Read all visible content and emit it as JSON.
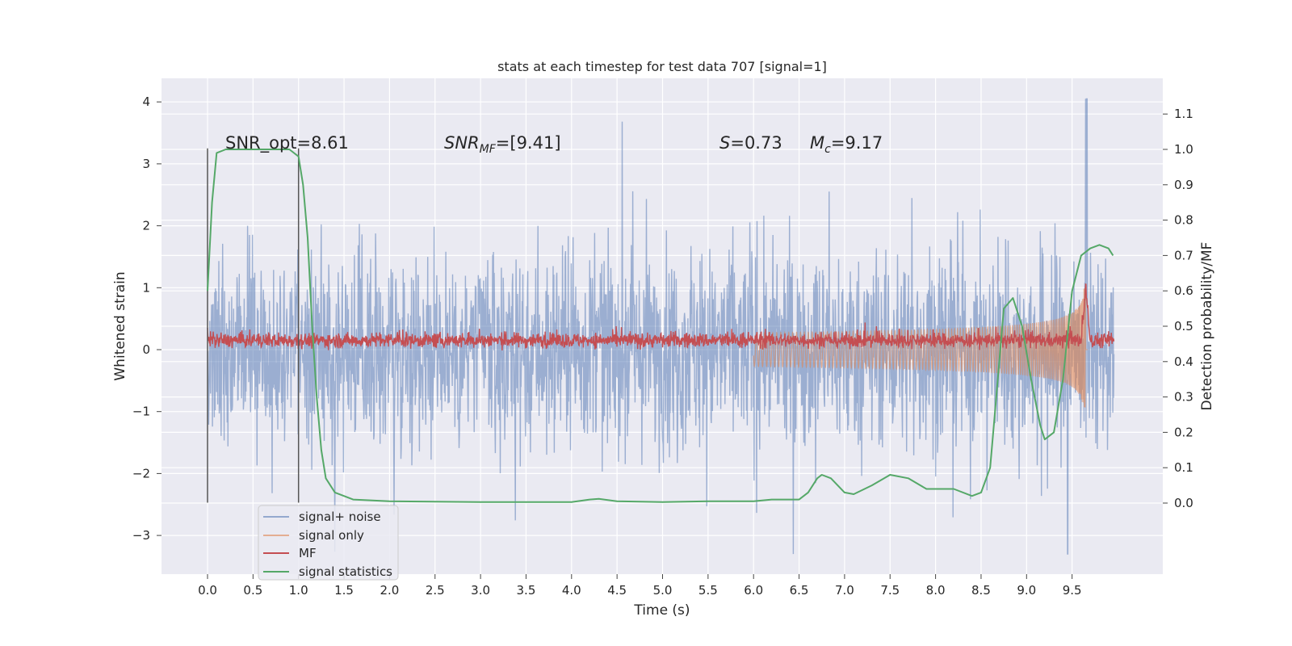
{
  "chart_data": {
    "type": "line",
    "title": "stats at each timestep for test data 707 [signal=1]",
    "xlabel": "Time (s)",
    "ylabel_left": "Whitened strain",
    "ylabel_right": "Detection probability/MF",
    "xlim": [
      -0.5,
      10.5
    ],
    "ylim_left": [
      -3.6,
      4.3
    ],
    "ylim_right": [
      -0.2,
      1.2
    ],
    "x_ticks": [
      "0.0",
      "0.5",
      "1.0",
      "1.5",
      "2.0",
      "2.5",
      "3.0",
      "3.5",
      "4.0",
      "4.5",
      "5.0",
      "5.5",
      "6.0",
      "6.5",
      "7.0",
      "7.5",
      "8.0",
      "8.5",
      "9.0",
      "9.5"
    ],
    "y_left_ticks": [
      "4",
      "3",
      "2",
      "1",
      "0",
      "−1",
      "−2",
      "−3"
    ],
    "y_right_ticks": [
      "1.1",
      "1.0",
      "0.9",
      "0.8",
      "0.7",
      "0.6",
      "0.5",
      "0.4",
      "0.3",
      "0.2",
      "0.1",
      "0.0"
    ],
    "grid": true,
    "legend_position": "lower-left",
    "annotations": {
      "snr_opt": "SNR_opt=8.61",
      "snr_mf_label": "SNR",
      "snr_mf_sub": "MF",
      "snr_mf_value": "=[9.41]",
      "s_label": "S",
      "s_value": "=0.73",
      "mc_label": "M",
      "mc_sub": "c",
      "mc_value": "=9.17"
    },
    "vertical_markers": [
      0.0,
      1.0
    ],
    "series": [
      {
        "name": "signal+ noise",
        "color": "#4c72b0",
        "note_axis": "left",
        "band_low": -1.6,
        "band_high": 1.5,
        "peak_max": 4.05,
        "peak_min": -3.3
      },
      {
        "name": "signal only",
        "color": "#dd8452",
        "axis": "left",
        "chirp_end_time": 9.65,
        "chirp_max_amp": 1.0
      },
      {
        "name": "MF",
        "color": "#c44e52",
        "axis": "left",
        "baseline": 0.15,
        "spike_time": 9.65,
        "spike_value": 1.0
      },
      {
        "name": "signal statistics",
        "color": "#55a868",
        "axis": "right",
        "points": [
          [
            0.0,
            0.6
          ],
          [
            0.05,
            0.85
          ],
          [
            0.1,
            0.99
          ],
          [
            0.2,
            1.0
          ],
          [
            0.5,
            1.0
          ],
          [
            0.9,
            1.0
          ],
          [
            1.0,
            0.98
          ],
          [
            1.05,
            0.9
          ],
          [
            1.1,
            0.75
          ],
          [
            1.15,
            0.5
          ],
          [
            1.2,
            0.3
          ],
          [
            1.25,
            0.15
          ],
          [
            1.3,
            0.07
          ],
          [
            1.4,
            0.03
          ],
          [
            1.6,
            0.01
          ],
          [
            2.0,
            0.005
          ],
          [
            3.0,
            0.003
          ],
          [
            4.0,
            0.003
          ],
          [
            4.2,
            0.01
          ],
          [
            4.3,
            0.012
          ],
          [
            4.5,
            0.005
          ],
          [
            5.0,
            0.003
          ],
          [
            5.5,
            0.005
          ],
          [
            6.0,
            0.005
          ],
          [
            6.2,
            0.01
          ],
          [
            6.5,
            0.01
          ],
          [
            6.6,
            0.03
          ],
          [
            6.7,
            0.07
          ],
          [
            6.75,
            0.08
          ],
          [
            6.85,
            0.07
          ],
          [
            7.0,
            0.03
          ],
          [
            7.1,
            0.025
          ],
          [
            7.3,
            0.05
          ],
          [
            7.5,
            0.08
          ],
          [
            7.7,
            0.07
          ],
          [
            7.9,
            0.04
          ],
          [
            8.2,
            0.04
          ],
          [
            8.4,
            0.02
          ],
          [
            8.5,
            0.03
          ],
          [
            8.6,
            0.1
          ],
          [
            8.65,
            0.25
          ],
          [
            8.7,
            0.4
          ],
          [
            8.75,
            0.55
          ],
          [
            8.85,
            0.58
          ],
          [
            8.95,
            0.5
          ],
          [
            9.05,
            0.35
          ],
          [
            9.15,
            0.22
          ],
          [
            9.2,
            0.18
          ],
          [
            9.3,
            0.2
          ],
          [
            9.4,
            0.35
          ],
          [
            9.5,
            0.6
          ],
          [
            9.6,
            0.7
          ],
          [
            9.7,
            0.72
          ],
          [
            9.8,
            0.73
          ],
          [
            9.9,
            0.72
          ],
          [
            9.95,
            0.7
          ]
        ]
      }
    ]
  }
}
